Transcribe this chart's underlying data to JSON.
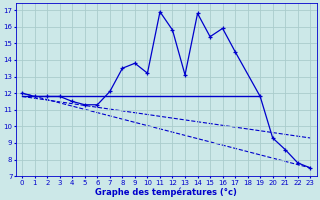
{
  "xlabel": "Graphe des températures (°c)",
  "background_color": "#cce8e8",
  "grid_color": "#aacccc",
  "line_color": "#0000cc",
  "xlim": [
    -0.5,
    23.5
  ],
  "ylim": [
    7,
    17.4
  ],
  "xticks": [
    0,
    1,
    2,
    3,
    4,
    5,
    6,
    7,
    8,
    9,
    10,
    11,
    12,
    13,
    14,
    15,
    16,
    17,
    18,
    19,
    20,
    21,
    22,
    23
  ],
  "yticks": [
    7,
    8,
    9,
    10,
    11,
    12,
    13,
    14,
    15,
    16,
    17
  ],
  "curve1_x": [
    0,
    1,
    2,
    3,
    4,
    5,
    6,
    7,
    8,
    9,
    10,
    11,
    12,
    13,
    14,
    15,
    16,
    17,
    19,
    20,
    21,
    22,
    23
  ],
  "curve1_y": [
    12.0,
    11.8,
    11.8,
    11.8,
    11.5,
    11.3,
    11.3,
    12.1,
    13.5,
    13.8,
    13.2,
    16.9,
    15.8,
    13.1,
    16.8,
    15.4,
    15.9,
    14.5,
    11.8,
    9.3,
    8.6,
    7.8,
    7.5
  ],
  "hline_x": [
    0,
    19
  ],
  "hline_y": [
    11.8,
    11.8
  ],
  "dline1_x": [
    0,
    23
  ],
  "dline1_y": [
    11.8,
    9.3
  ],
  "dline2_x": [
    0,
    23
  ],
  "dline2_y": [
    12.0,
    7.5
  ]
}
